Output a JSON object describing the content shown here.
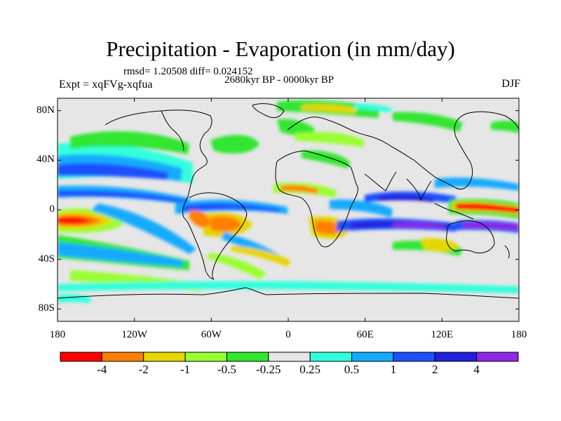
{
  "title": "Precipitation - Evaporation (in mm/day)",
  "stats": "rmsd= 1.20508 diff= 0.024152",
  "period": "2680kyr BP - 0000kyr BP",
  "experiment": "Expt = xqFVg-xqfua",
  "season": "DJF",
  "map": {
    "projection": "cylindrical equidistant",
    "lon_range": [
      -180,
      180
    ],
    "lat_range": [
      -90,
      90
    ],
    "background_color": "#e6e6e6",
    "lat_ticks": [
      {
        "value": 80,
        "label": "80N"
      },
      {
        "value": 40,
        "label": "40N"
      },
      {
        "value": 0,
        "label": "0"
      },
      {
        "value": -40,
        "label": "40S"
      },
      {
        "value": -80,
        "label": "80S"
      }
    ],
    "lon_ticks": [
      {
        "value": -180,
        "label": "180"
      },
      {
        "value": -120,
        "label": "120W"
      },
      {
        "value": -60,
        "label": "60W"
      },
      {
        "value": 0,
        "label": "0"
      },
      {
        "value": 60,
        "label": "60E"
      },
      {
        "value": 120,
        "label": "120E"
      },
      {
        "value": 180,
        "label": "180"
      }
    ]
  },
  "colorbar": {
    "colors": [
      "#ff0000",
      "#ff8000",
      "#e6d600",
      "#9aff32",
      "#32e632",
      "#e6e6e6",
      "#32ffdc",
      "#14aaff",
      "#1e50ff",
      "#2020dc",
      "#8c28e6"
    ],
    "labels": [
      "-4",
      "-2",
      "-1",
      "-0.5",
      "-0.25",
      "0.25",
      "0.5",
      "1",
      "2",
      "4"
    ]
  }
}
